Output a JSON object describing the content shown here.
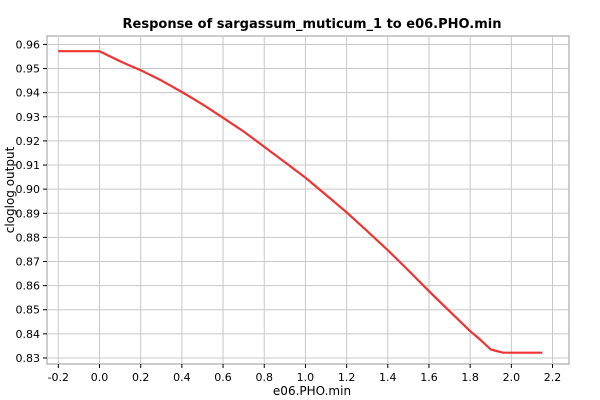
{
  "chart_data": {
    "type": "line",
    "title": "Response of sargassum_muticum_1 to e06.PHO.min",
    "xlabel": "e06.PHO.min",
    "ylabel": "cloglog output",
    "xlim": [
      -0.255,
      2.28
    ],
    "ylim": [
      0.8275,
      0.9635
    ],
    "xticks": [
      "-0.2",
      "0.0",
      "0.2",
      "0.4",
      "0.6",
      "0.8",
      "1.0",
      "1.2",
      "1.4",
      "1.6",
      "1.8",
      "2.0",
      "2.2"
    ],
    "yticks": [
      "0.83",
      "0.84",
      "0.85",
      "0.86",
      "0.87",
      "0.88",
      "0.89",
      "0.90",
      "0.91",
      "0.92",
      "0.93",
      "0.94",
      "0.95",
      "0.96"
    ],
    "grid": true,
    "line_color": "#ee3333",
    "series": [
      {
        "x": [
          -0.2,
          0.0,
          0.1,
          0.2,
          0.3,
          0.4,
          0.5,
          0.6,
          0.7,
          0.8,
          0.9,
          1.0,
          1.1,
          1.2,
          1.3,
          1.4,
          1.5,
          1.6,
          1.7,
          1.8,
          1.85,
          1.9,
          1.96,
          2.15
        ],
        "y": [
          0.9572,
          0.9572,
          0.953,
          0.9493,
          0.9451,
          0.9403,
          0.9352,
          0.9296,
          0.9239,
          0.9176,
          0.9112,
          0.9048,
          0.8976,
          0.8904,
          0.8826,
          0.8747,
          0.8663,
          0.8577,
          0.8494,
          0.8411,
          0.8375,
          0.8335,
          0.8322,
          0.8322
        ]
      }
    ]
  }
}
